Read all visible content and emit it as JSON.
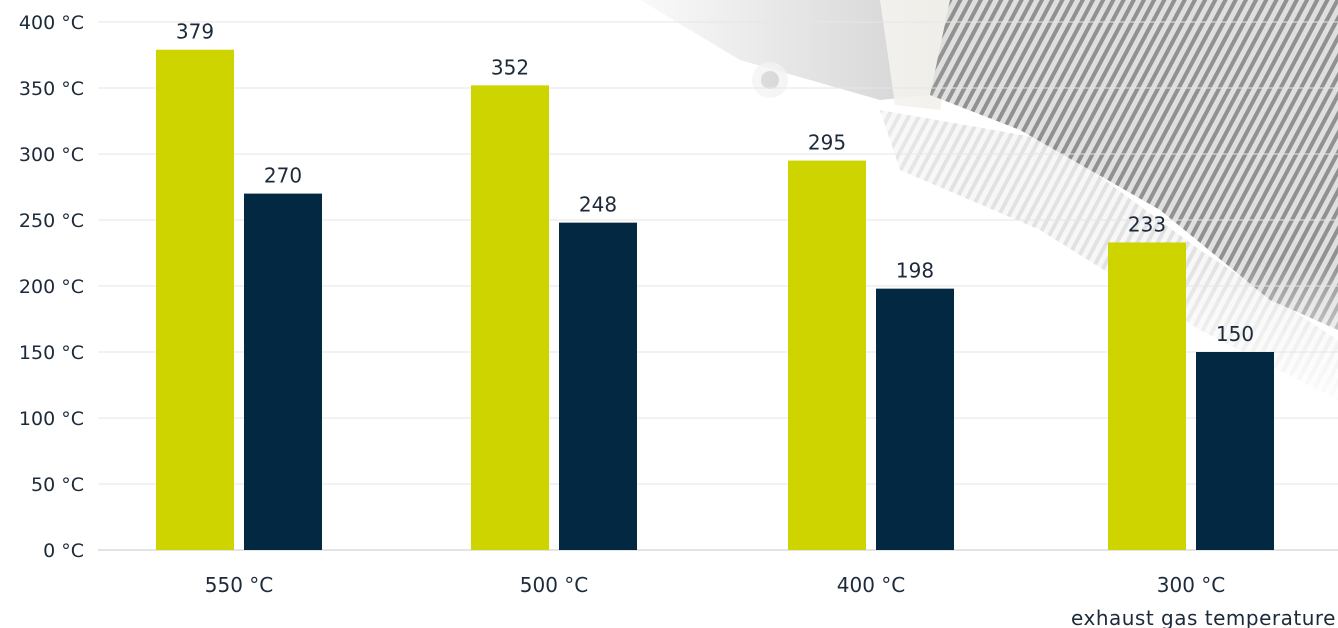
{
  "chart_data": {
    "type": "bar",
    "categories": [
      "550 °C",
      "500 °C",
      "400 °C",
      "300 °C"
    ],
    "series": [
      {
        "color": "#cdd400",
        "values": [
          379,
          352,
          295,
          233
        ]
      },
      {
        "color": "#032842",
        "values": [
          270,
          248,
          198,
          150
        ]
      }
    ],
    "xlabel": "exhaust gas temperature",
    "ylabel": "",
    "ylim": [
      0,
      400
    ],
    "yticks": [
      0,
      50,
      100,
      150,
      200,
      250,
      300,
      350,
      400
    ],
    "ytick_labels": [
      "0 °C",
      "50 °C",
      "100 °C",
      "150 °C",
      "200 °C",
      "250 °C",
      "300 °C",
      "350 °C",
      "400 °C"
    ],
    "grid": true,
    "legend": "none"
  },
  "background": {
    "description_icon": "corrugated-exhaust-pipe-photo"
  }
}
